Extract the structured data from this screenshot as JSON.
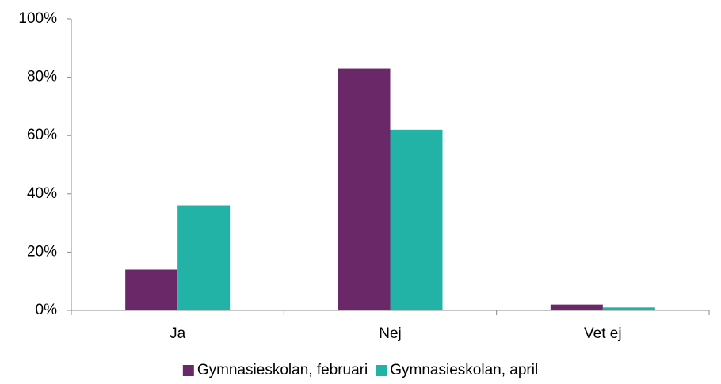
{
  "chart_data": {
    "type": "bar",
    "categories": [
      "Ja",
      "Nej",
      "Vet ej"
    ],
    "series": [
      {
        "name": "Gymnasieskolan, februari",
        "color": "#6b2868",
        "values": [
          14,
          83,
          2
        ]
      },
      {
        "name": "Gymnasieskolan, april",
        "color": "#22b2a6",
        "values": [
          36,
          62,
          1
        ]
      }
    ],
    "ylim": [
      0,
      100
    ],
    "yticks": [
      {
        "value": 0,
        "label": "0%"
      },
      {
        "value": 20,
        "label": "20%"
      },
      {
        "value": 40,
        "label": "40%"
      },
      {
        "value": 60,
        "label": "60%"
      },
      {
        "value": 80,
        "label": "80%"
      },
      {
        "value": 100,
        "label": "100%"
      }
    ],
    "grid": false,
    "legend": "bottom"
  }
}
